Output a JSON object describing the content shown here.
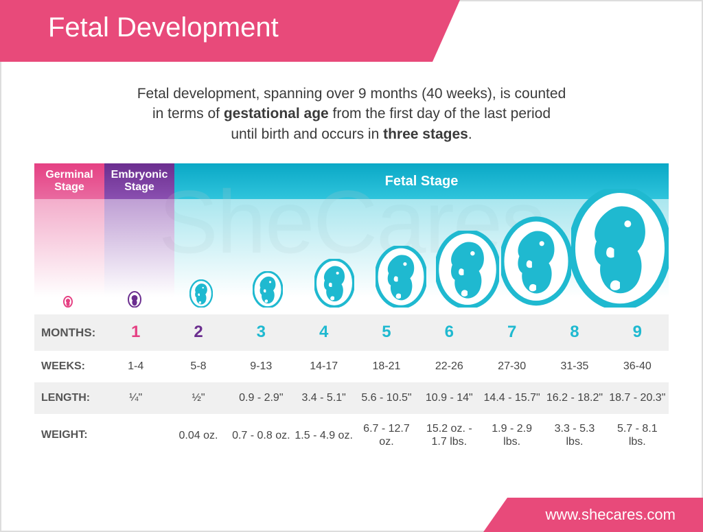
{
  "header": {
    "title": "Fetal Development"
  },
  "intro": {
    "line1": "Fetal development, spanning over 9 months (40 weeks), is counted",
    "line2a": "in terms of ",
    "line2b": "gestational age",
    "line2c": " from the first day of the last period",
    "line3a": "until birth and occurs in ",
    "line3b": "three stages",
    "line3c": "."
  },
  "watermark": "SheCares",
  "stages": {
    "germinal": "Germinal Stage",
    "embryonic": "Embryonic Stage",
    "fetal": "Fetal Stage"
  },
  "colors": {
    "germinal": "#e54083",
    "embryonic": "#6b2e8f",
    "fetal": "#1fb9d0",
    "pink_accent": "#e84a7a",
    "text": "#3a3a3a"
  },
  "labels": {
    "months": "MONTHS:",
    "weeks": "WEEKS:",
    "length": "LENGTH:",
    "weight": "WEIGHT:"
  },
  "months": [
    {
      "num": "1",
      "color": "#e54083",
      "weeks": "1-4",
      "length": "¼\"",
      "weight": ""
    },
    {
      "num": "2",
      "color": "#6b2e8f",
      "weeks": "5-8",
      "length": "½\"",
      "weight": "0.04 oz."
    },
    {
      "num": "3",
      "color": "#1fb9d0",
      "weeks": "9-13",
      "length": "0.9 - 2.9\"",
      "weight": "0.7 - 0.8 oz."
    },
    {
      "num": "4",
      "color": "#1fb9d0",
      "weeks": "14-17",
      "length": "3.4 - 5.1\"",
      "weight": "1.5 - 4.9 oz."
    },
    {
      "num": "5",
      "color": "#1fb9d0",
      "weeks": "18-21",
      "length": "5.6 - 10.5\"",
      "weight": "6.7 - 12.7 oz."
    },
    {
      "num": "6",
      "color": "#1fb9d0",
      "weeks": "22-26",
      "length": "10.9 - 14\"",
      "weight": "15.2 oz. - 1.7 lbs."
    },
    {
      "num": "7",
      "color": "#1fb9d0",
      "weeks": "27-30",
      "length": "14.4 - 15.7\"",
      "weight": "1.9 - 2.9 lbs."
    },
    {
      "num": "8",
      "color": "#1fb9d0",
      "weeks": "31-35",
      "length": "16.2 - 18.2\"",
      "weight": "3.3 - 5.3 lbs."
    },
    {
      "num": "9",
      "color": "#1fb9d0",
      "weeks": "36-40",
      "length": "18.7 - 20.3\"",
      "weight": "5.7 - 8.1 lbs."
    }
  ],
  "fetus_sizes": [
    14,
    20,
    34,
    44,
    58,
    74,
    92,
    112,
    142
  ],
  "footer": {
    "url": "www.shecares.com"
  }
}
